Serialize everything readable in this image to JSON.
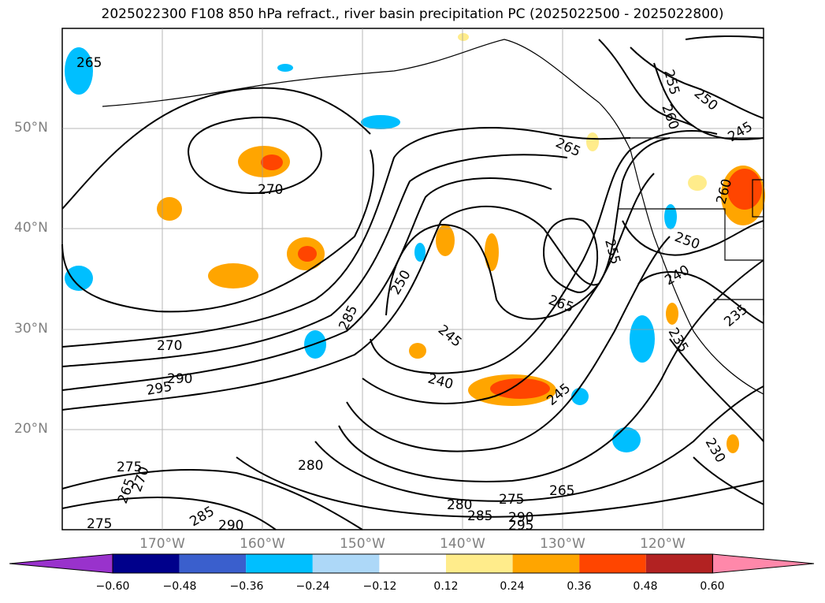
{
  "title": "2025022300 F108 850 hPa refract., river basin precipitation PC (2025022500 - 2025022800)",
  "map": {
    "lon_range": [
      -180,
      -110
    ],
    "lat_range": [
      10,
      60
    ],
    "lat_ticks": [
      "50°N",
      "40°N",
      "30°N",
      "20°N"
    ],
    "lon_ticks": [
      "170°W",
      "160°W",
      "150°W",
      "140°W",
      "130°W",
      "120°W"
    ],
    "gridlines": true,
    "contour_labels": [
      "265",
      "270",
      "285",
      "250",
      "245",
      "240",
      "245",
      "265",
      "255",
      "250",
      "240",
      "235",
      "230",
      "255",
      "260",
      "250",
      "245",
      "260",
      "265",
      "270",
      "290",
      "295",
      "280",
      "275",
      "265",
      "270",
      "285",
      "290",
      "280",
      "285",
      "275",
      "290",
      "295",
      "265",
      "235"
    ]
  },
  "colorbar": {
    "ticks": [
      "−0.60",
      "−0.48",
      "−0.36",
      "−0.24",
      "−0.12",
      "0.12",
      "0.24",
      "0.36",
      "0.48",
      "0.60"
    ],
    "colors": [
      "#9932cc",
      "#00008b",
      "#3a5fcd",
      "#00bfff",
      "#add8f8",
      "#ffffff",
      "#ffec8b",
      "#ffa500",
      "#ff4500",
      "#b22222",
      "#ff88aa"
    ]
  }
}
